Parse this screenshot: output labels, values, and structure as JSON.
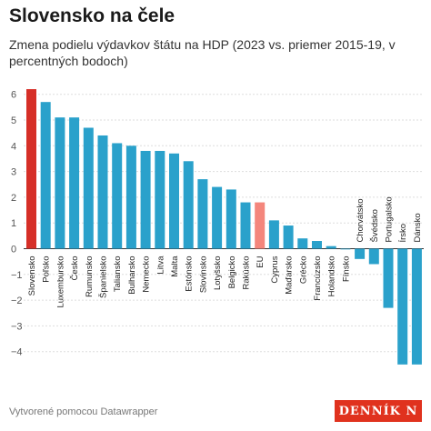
{
  "title": "Slovensko na čele",
  "subtitle": "Zmena podielu výdavkov štátu na HDP (2023 vs. priemer 2015-19, v percentných bodoch)",
  "footer": "Vytvorené pomocou Datawrapper",
  "logo": "DENNÍK N",
  "colors": {
    "default": "#2aa1cb",
    "highlight": "#d62f27",
    "eu": "#f4867c",
    "grid": "#dddddd",
    "axis_text": "#555555"
  },
  "chart_data": {
    "type": "bar",
    "categories": [
      "Slovensko",
      "Poľsko",
      "Luxembursko",
      "Česko",
      "Rumunsko",
      "Španielsko",
      "Taliansko",
      "Bulharsko",
      "Nemecko",
      "Litva",
      "Malta",
      "Estónsko",
      "Slovinsko",
      "Lotyšsko",
      "Belgicko",
      "Rakúsko",
      "EU",
      "Cyprus",
      "Maďarsko",
      "Grécko",
      "Francúzsko",
      "Holandsko",
      "Fínsko",
      "Chorvátsko",
      "Švédsko",
      "Portugalsko",
      "Írsko",
      "Dánsko"
    ],
    "values": [
      6.2,
      5.7,
      5.1,
      5.1,
      4.7,
      4.4,
      4.1,
      4.0,
      3.8,
      3.8,
      3.7,
      3.4,
      2.7,
      2.4,
      2.3,
      1.8,
      1.8,
      1.1,
      0.9,
      0.4,
      0.3,
      0.1,
      0.0,
      -0.4,
      -0.6,
      -2.3,
      -4.5,
      -4.5
    ],
    "highlight": [
      "Slovensko"
    ],
    "reference": [
      "EU"
    ],
    "yticks": [
      6,
      5,
      4,
      3,
      2,
      1,
      0,
      -1,
      -2,
      -3,
      -4
    ],
    "ylim": [
      -4.6,
      6.4
    ],
    "xlabel": "",
    "ylabel": ""
  }
}
